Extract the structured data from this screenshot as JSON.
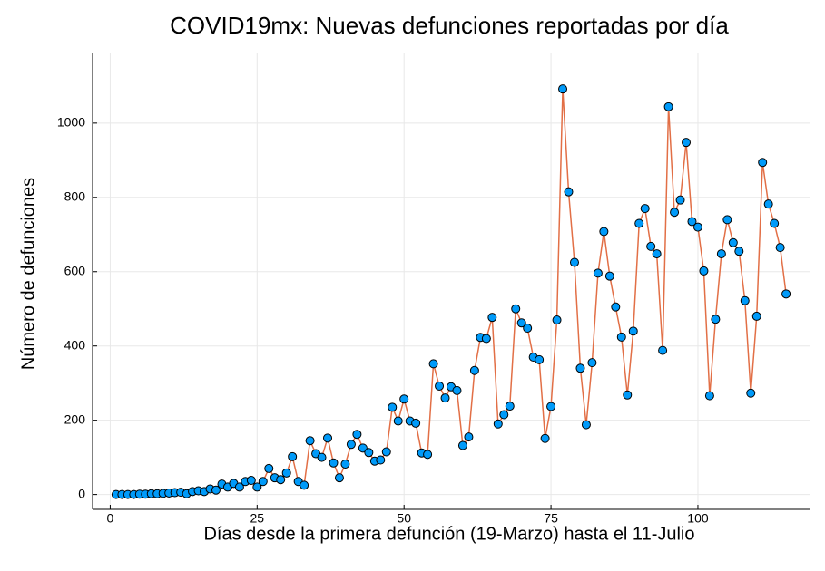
{
  "chart_data": {
    "type": "line",
    "title": "COVID19mx: Nuevas defunciones reportadas por día",
    "x_label": "Días desde la primera defunción (19-Marzo) hasta el 11-Julio",
    "y_label": "Número de defunciones",
    "x": [
      1,
      2,
      3,
      4,
      5,
      6,
      7,
      8,
      9,
      10,
      11,
      12,
      13,
      14,
      15,
      16,
      17,
      18,
      19,
      20,
      21,
      22,
      23,
      24,
      25,
      26,
      27,
      28,
      29,
      30,
      31,
      32,
      33,
      34,
      35,
      36,
      37,
      38,
      39,
      40,
      41,
      42,
      43,
      44,
      45,
      46,
      47,
      48,
      49,
      50,
      51,
      52,
      53,
      54,
      55,
      56,
      57,
      58,
      59,
      60,
      61,
      62,
      63,
      64,
      65,
      66,
      67,
      68,
      69,
      70,
      71,
      72,
      73,
      74,
      75,
      76,
      77,
      78,
      79,
      80,
      81,
      82,
      83,
      84,
      85,
      86,
      87,
      88,
      89,
      90,
      91,
      92,
      93,
      94,
      95,
      96,
      97,
      98,
      99,
      100,
      101,
      102,
      103,
      104,
      105,
      106,
      107,
      108,
      109,
      110,
      111,
      112,
      113,
      114,
      115
    ],
    "series": [
      {
        "name": "y1",
        "color": "#e26f46",
        "marker_color": "#009af9",
        "values": [
          0,
          0,
          0,
          0,
          1,
          1,
          2,
          2,
          3,
          4,
          5,
          6,
          2,
          8,
          10,
          8,
          15,
          12,
          28,
          20,
          30,
          20,
          35,
          38,
          20,
          35,
          70,
          45,
          40,
          58,
          102,
          35,
          25,
          145,
          110,
          100,
          152,
          85,
          45,
          82,
          135,
          162,
          125,
          113,
          90,
          93,
          115,
          235,
          198,
          257,
          198,
          192,
          112,
          108,
          352,
          292,
          260,
          290,
          280,
          132,
          155,
          334,
          423,
          420,
          477,
          190,
          215,
          238,
          500,
          462,
          448,
          370,
          363,
          151,
          237,
          470,
          1092,
          815,
          625,
          340,
          188,
          355,
          596,
          708,
          588,
          505,
          424,
          268,
          440,
          730,
          770,
          668,
          648,
          388,
          1044,
          760,
          793,
          948,
          735,
          720,
          602,
          266,
          472,
          648,
          740,
          678,
          655,
          522,
          273,
          480,
          894,
          782,
          730,
          665,
          540
        ]
      }
    ],
    "xlim": [
      -3,
      119
    ],
    "ylim": [
      -40,
      1190
    ],
    "xticks": [
      0,
      25,
      50,
      75,
      100
    ],
    "yticks": [
      0,
      200,
      400,
      600,
      800,
      1000
    ],
    "grid": true
  }
}
